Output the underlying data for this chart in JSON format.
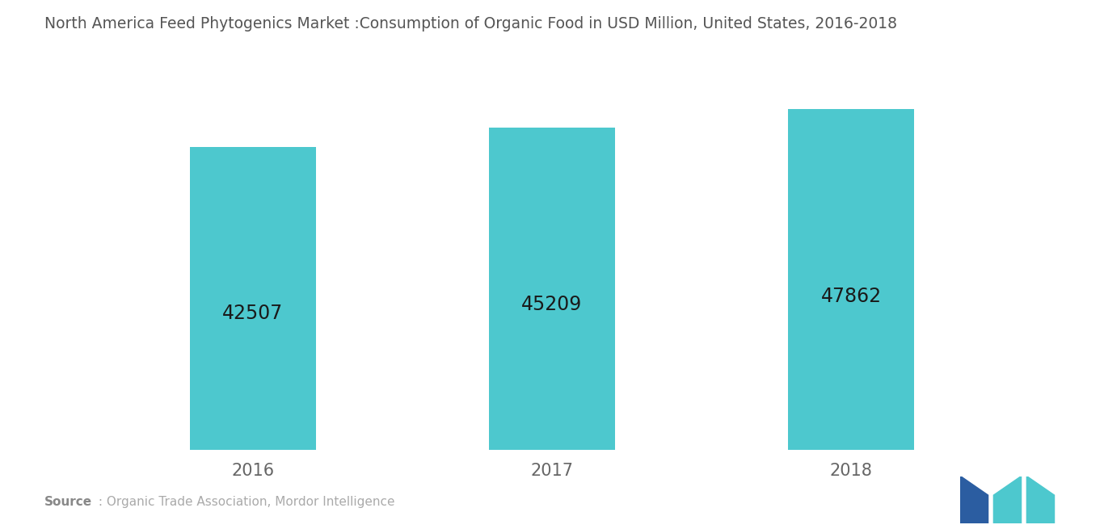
{
  "title": "North America Feed Phytogenics Market :Consumption of Organic Food in USD Million, United States, 2016-2018",
  "categories": [
    "2016",
    "2017",
    "2018"
  ],
  "values": [
    42507,
    45209,
    47862
  ],
  "bar_color": "#4DC8CE",
  "label_color": "#1a1a1a",
  "background_color": "#ffffff",
  "label_fontsize": 17,
  "title_fontsize": 13.5,
  "tick_fontsize": 15,
  "source_text": " : Organic Trade Association, Mordor Intelligence",
  "source_bold": "Source",
  "ylim_min": 0,
  "ylim_max": 52000,
  "bar_width": 0.42
}
